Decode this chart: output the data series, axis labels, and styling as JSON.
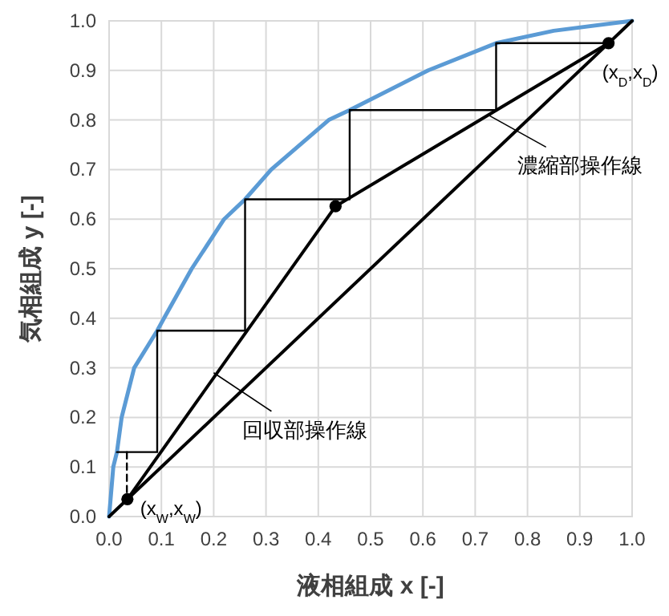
{
  "chart_data": {
    "type": "line",
    "xlabel": "液相組成 x [-]",
    "ylabel": "気相組成 y [-]",
    "xlim": [
      0,
      1
    ],
    "ylim": [
      0,
      1
    ],
    "xticks": [
      {
        "value": 0,
        "label": "0.0"
      },
      {
        "value": 0.1,
        "label": "0.1"
      },
      {
        "value": 0.2,
        "label": "0.2"
      },
      {
        "value": 0.3,
        "label": "0.3"
      },
      {
        "value": 0.4,
        "label": "0.4"
      },
      {
        "value": 0.5,
        "label": "0.5"
      },
      {
        "value": 0.6,
        "label": "0.6"
      },
      {
        "value": 0.7,
        "label": "0.7"
      },
      {
        "value": 0.8,
        "label": "0.8"
      },
      {
        "value": 0.9,
        "label": "0.9"
      },
      {
        "value": 1,
        "label": "1.0"
      }
    ],
    "yticks": [
      {
        "value": 0,
        "label": "0.0"
      },
      {
        "value": 0.1,
        "label": "0.1"
      },
      {
        "value": 0.2,
        "label": "0.2"
      },
      {
        "value": 0.3,
        "label": "0.3"
      },
      {
        "value": 0.4,
        "label": "0.4"
      },
      {
        "value": 0.5,
        "label": "0.5"
      },
      {
        "value": 0.6,
        "label": "0.6"
      },
      {
        "value": 0.7,
        "label": "0.7"
      },
      {
        "value": 0.8,
        "label": "0.8"
      },
      {
        "value": 0.9,
        "label": "0.9"
      },
      {
        "value": 1,
        "label": "1.0"
      }
    ],
    "grid": true,
    "series": [
      {
        "type": "line",
        "color": "#5b9bd5",
        "x": [
          0,
          0.008,
          0.015,
          0.024,
          0.048,
          0.092,
          0.105,
          0.158,
          0.22,
          0.26,
          0.31,
          0.42,
          0.46,
          0.61,
          0.74,
          0.85,
          1
        ],
        "values": [
          0,
          0.1,
          0.13,
          0.2,
          0.3,
          0.375,
          0.4,
          0.5,
          0.6,
          0.64,
          0.7,
          0.8,
          0.82,
          0.9,
          0.955,
          0.98,
          1
        ]
      },
      {
        "type": "line",
        "color": "#000000",
        "x": [
          0,
          1
        ],
        "values": [
          0,
          1
        ]
      },
      {
        "type": "line",
        "color": "#000000",
        "x": [
          0.433,
          0.955
        ],
        "values": [
          0.626,
          0.955
        ]
      },
      {
        "type": "line",
        "color": "#000000",
        "x": [
          0.035,
          0.433
        ],
        "values": [
          0.035,
          0.626
        ]
      },
      {
        "type": "line",
        "color": "#000000",
        "x": [
          0.955,
          0.74,
          0.74,
          0.46,
          0.46,
          0.26,
          0.26,
          0.092,
          0.092,
          0.015
        ],
        "values": [
          0.955,
          0.955,
          0.82,
          0.82,
          0.64,
          0.64,
          0.375,
          0.375,
          0.13,
          0.13
        ]
      },
      {
        "type": "line",
        "color": "#000000",
        "line_style": "dashed",
        "x": [
          0.034,
          0.034
        ],
        "values": [
          0.13,
          0.035
        ]
      },
      {
        "type": "scatter",
        "color": "#000000",
        "marker": "circle",
        "x": [
          0.035,
          0.433,
          0.955
        ],
        "values": [
          0.035,
          0.626,
          0.955
        ]
      }
    ],
    "annotations": [
      {
        "text": "(x$_{D}$,x$_{D}$)",
        "x": 0.955,
        "y": 0.955
      },
      {
        "text": "濃縮部操作線",
        "x": 0.725,
        "y": 0.81
      },
      {
        "text": "回収部操作線",
        "x": 0.2,
        "y": 0.29
      },
      {
        "text": "(x$_{W}$,x$_{W}$)",
        "x": 0.035,
        "y": 0.035
      }
    ]
  }
}
